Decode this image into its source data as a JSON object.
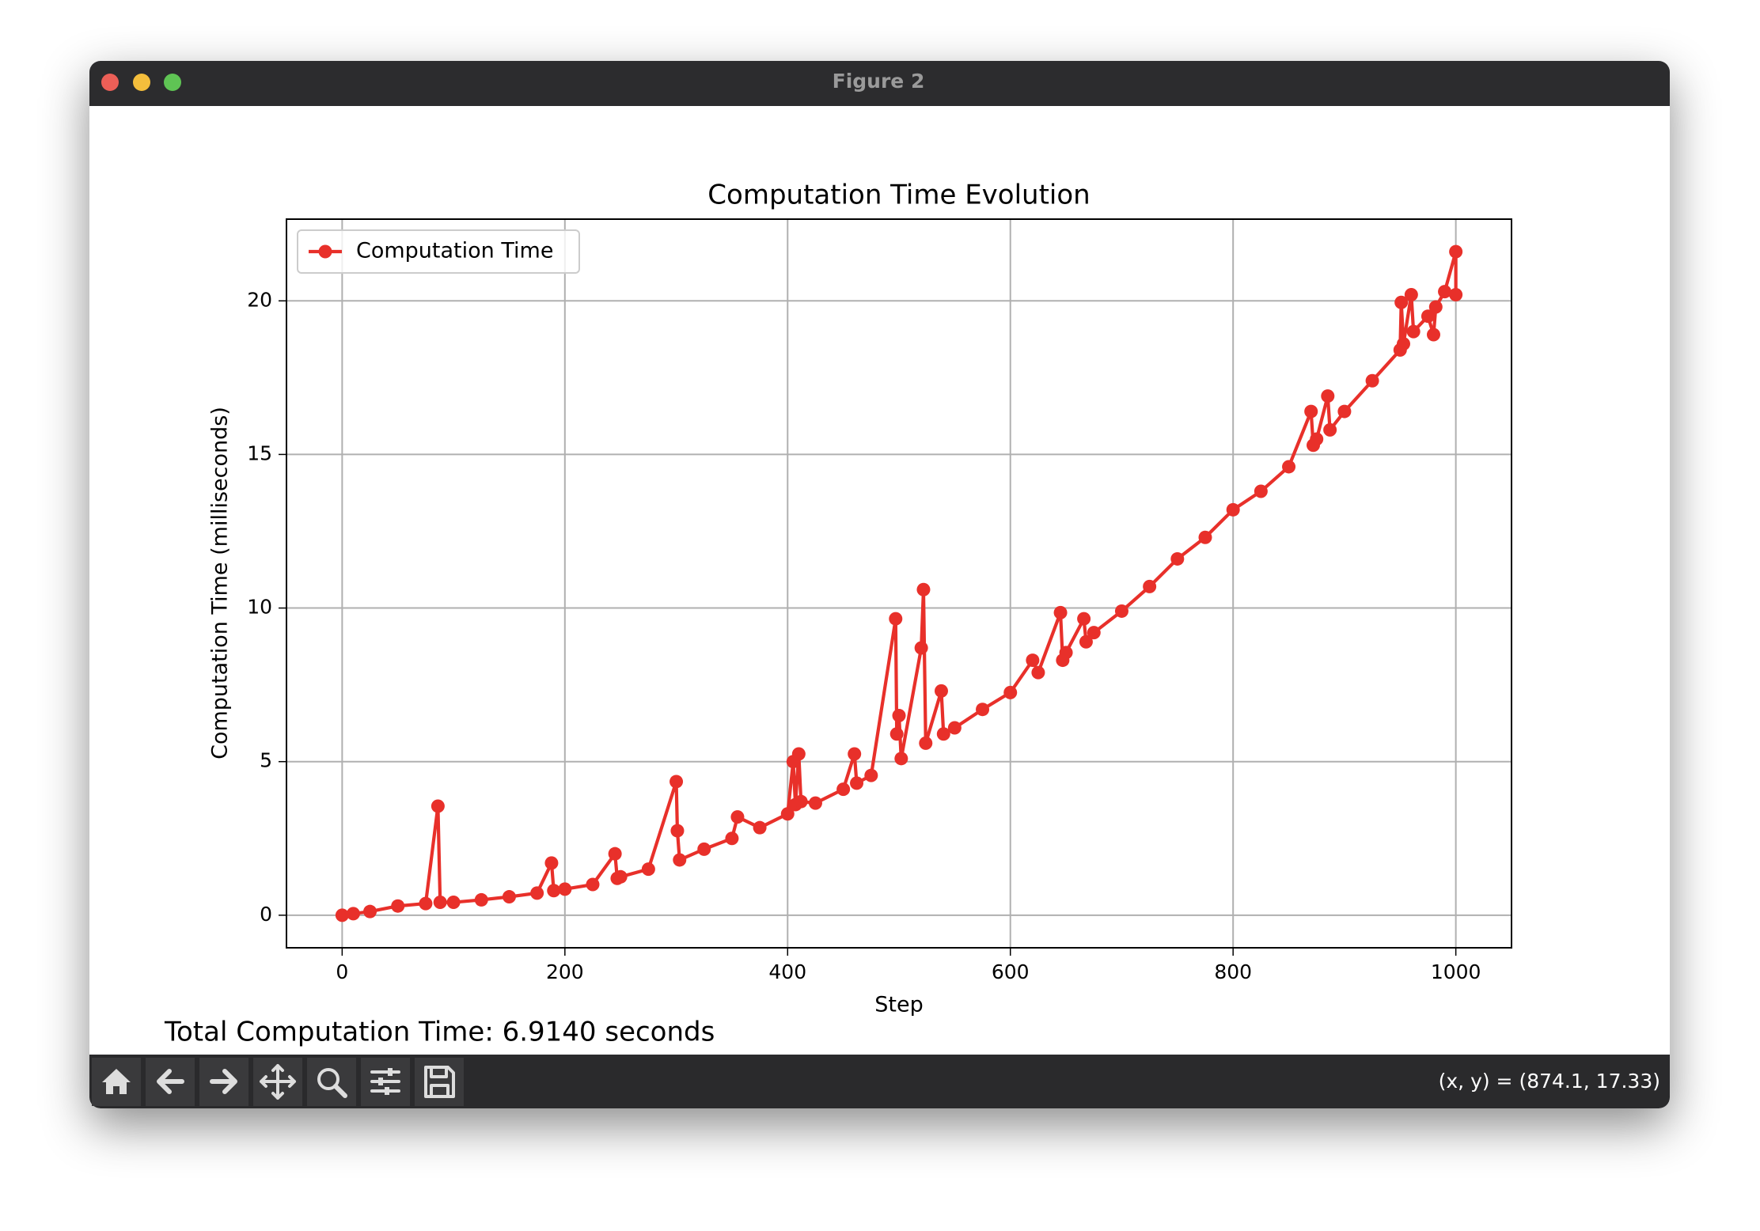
{
  "window": {
    "title": "Figure 2"
  },
  "chart_data": {
    "type": "line",
    "title": "Computation Time Evolution",
    "xlabel": "Step",
    "ylabel": "Computation Time (milliseconds)",
    "x": [
      0,
      10,
      25,
      50,
      75,
      86,
      88,
      100,
      125,
      150,
      175,
      188,
      190,
      200,
      225,
      245,
      247,
      250,
      275,
      300,
      301,
      303,
      325,
      350,
      355,
      375,
      400,
      405,
      407,
      410,
      412,
      425,
      450,
      460,
      462,
      475,
      497,
      498,
      500,
      502,
      520,
      522,
      524,
      538,
      540,
      550,
      575,
      600,
      620,
      625,
      645,
      647,
      650,
      666,
      668,
      675,
      700,
      725,
      750,
      775,
      800,
      825,
      850,
      870,
      872,
      875,
      885,
      887,
      900,
      925,
      950,
      951,
      953,
      960,
      962,
      975,
      980,
      982,
      990,
      1000,
      1000
    ],
    "series": [
      {
        "name": "Computation Time",
        "color": "#e8302a",
        "marker": "o",
        "values": [
          0,
          0.05,
          0.12,
          0.3,
          0.38,
          3.55,
          0.42,
          0.42,
          0.5,
          0.6,
          0.72,
          1.7,
          0.8,
          0.85,
          1.0,
          2.0,
          1.2,
          1.25,
          1.5,
          4.35,
          2.75,
          1.8,
          2.15,
          2.5,
          3.2,
          2.85,
          3.3,
          5.0,
          3.6,
          5.25,
          3.7,
          3.65,
          4.1,
          5.25,
          4.3,
          4.55,
          9.65,
          5.9,
          6.5,
          5.1,
          8.7,
          10.6,
          5.6,
          7.3,
          5.9,
          6.1,
          6.7,
          7.25,
          8.3,
          7.9,
          9.85,
          8.3,
          8.55,
          9.65,
          8.9,
          9.2,
          9.9,
          10.7,
          11.6,
          12.3,
          13.2,
          13.8,
          14.6,
          16.4,
          15.3,
          15.5,
          16.9,
          15.8,
          16.4,
          17.4,
          18.4,
          19.95,
          18.6,
          20.2,
          19.0,
          19.5,
          18.9,
          19.8,
          20.3,
          21.6,
          20.2
        ]
      }
    ],
    "xlim": [
      -50,
      1050
    ],
    "ylim": [
      -1.06,
      22.66
    ],
    "xticks": [
      0,
      200,
      400,
      600,
      800,
      1000
    ],
    "yticks": [
      0,
      5,
      10,
      15,
      20
    ],
    "grid": true,
    "legend": "upper-left"
  },
  "figure_text": "Total Computation Time: 6.9140 seconds",
  "status": "(x, y) = (874.1, 17.33)"
}
